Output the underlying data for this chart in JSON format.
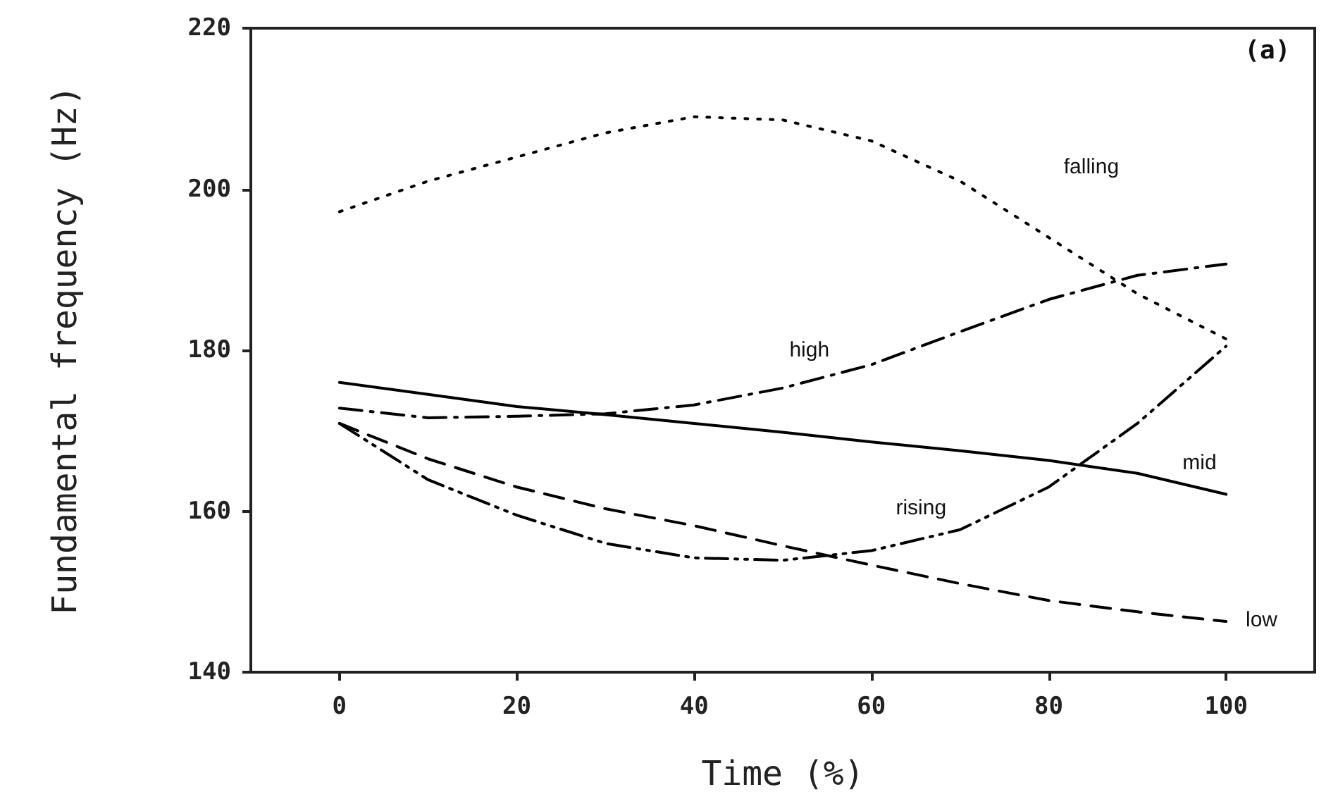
{
  "chart_data": {
    "type": "line",
    "xlabel": "Time (%)",
    "ylabel": "Fundamental frequency (Hz)",
    "x": [
      0,
      10,
      20,
      30,
      40,
      50,
      60,
      70,
      80,
      90,
      100
    ],
    "xlim": [
      -10,
      110
    ],
    "xticks": [
      0,
      20,
      40,
      60,
      80,
      100
    ],
    "ylim": [
      140,
      220
    ],
    "yticks": [
      140,
      160,
      180,
      200,
      220
    ],
    "grid": false,
    "marker": "none",
    "series": [
      {
        "color": "#000000",
        "line_style": "dotted",
        "values": [
          197.2,
          201,
          204,
          207,
          209,
          208.6,
          206,
          201,
          194,
          187,
          181.4
        ]
      },
      {
        "color": "#000000",
        "line_style": "dashdot",
        "values": [
          172.8,
          171.6,
          171.8,
          172.1,
          173.2,
          175.3,
          178.2,
          182.3,
          186.3,
          189.3,
          190.7
        ]
      },
      {
        "color": "#000000",
        "line_style": "solid",
        "values": [
          176,
          174.5,
          173,
          172,
          170.9,
          169.8,
          168.6,
          167.5,
          166.3,
          164.7,
          162.1
        ]
      },
      {
        "color": "#000000",
        "line_style": "dashdotdot",
        "values": [
          170.9,
          163.9,
          159.5,
          156,
          154.2,
          153.9,
          155.1,
          157.7,
          163,
          170.9,
          180.5
        ]
      },
      {
        "color": "#000000",
        "line_style": "dashed",
        "values": [
          170.9,
          166.5,
          163,
          160.3,
          158.2,
          155.7,
          153.3,
          151,
          148.9,
          147.5,
          146.3
        ]
      }
    ],
    "annotations": [
      "falling",
      {
        "text": "high",
        "x": 53,
        "y": 180
      },
      {
        "text": "mid",
        "x": 97,
        "y": 166
      },
      "rising",
      {
        "text": "low",
        "x": 104,
        "y": 146.5
      },
      "(a)"
    ]
  }
}
